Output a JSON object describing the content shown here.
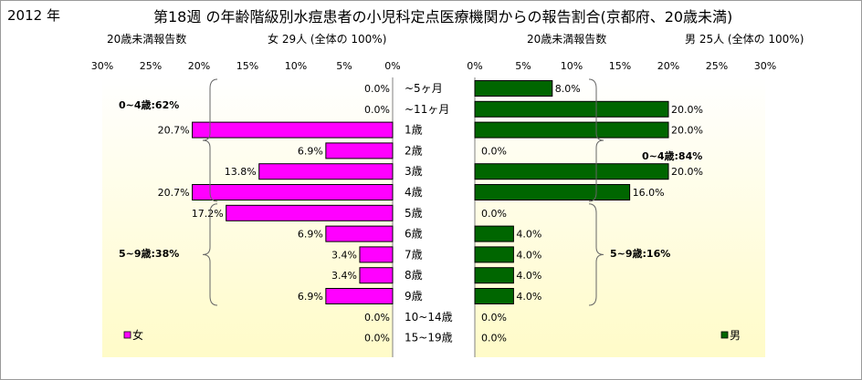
{
  "header": {
    "year": "2012 年",
    "title": "第18週 の年齢階級別水痘患者の小児科定点医療機関からの報告割合(京都府、20歳未満)"
  },
  "colors": {
    "female": "#ff00ff",
    "male": "#006600",
    "plot_top": "#ffffff",
    "plot_bottom": "#fffbc8"
  },
  "chart_data": [
    {
      "type": "bar",
      "orientation": "horizontal",
      "side": "left",
      "subtitle_left": "20歳未満報告数",
      "subtitle_right": "女 29人 (全体の 100%)",
      "legend": "女",
      "legend_position": "bottom-left",
      "xlim": [
        0,
        30
      ],
      "xticks": [
        "30%",
        "25%",
        "20%",
        "15%",
        "10%",
        "5%",
        "0%"
      ],
      "categories": [
        "~5ヶ月",
        "~11ヶ月",
        "1歳",
        "2歳",
        "3歳",
        "4歳",
        "5歳",
        "6歳",
        "7歳",
        "8歳",
        "9歳",
        "10~14歳",
        "15~19歳"
      ],
      "values": [
        0.0,
        0.0,
        20.7,
        6.9,
        13.8,
        20.7,
        17.2,
        6.9,
        3.4,
        3.4,
        6.9,
        0.0,
        0.0
      ],
      "data_labels": [
        "0.0%",
        "0.0%",
        "20.7%",
        "6.9%",
        "13.8%",
        "20.7%",
        "17.2%",
        "6.9%",
        "3.4%",
        "3.4%",
        "6.9%",
        "0.0%",
        "0.0%"
      ],
      "annotations": [
        {
          "text": "0~4歳:62%",
          "from": 0,
          "to": 5
        },
        {
          "text": "5~9歳:38%",
          "from": 6,
          "to": 10
        }
      ]
    },
    {
      "type": "bar",
      "orientation": "horizontal",
      "side": "right",
      "subtitle_left": "20歳未満報告数",
      "subtitle_right": "男 25人 (全体の 100%)",
      "legend": "男",
      "legend_position": "bottom-right",
      "xlim": [
        0,
        30
      ],
      "xticks": [
        "0%",
        "5%",
        "10%",
        "15%",
        "20%",
        "25%",
        "30%"
      ],
      "values": [
        8.0,
        20.0,
        20.0,
        0.0,
        20.0,
        16.0,
        0.0,
        4.0,
        4.0,
        4.0,
        4.0,
        0.0,
        0.0
      ],
      "data_labels": [
        "8.0%",
        "20.0%",
        "20.0%",
        "0.0%",
        "20.0%",
        "16.0%",
        "0.0%",
        "4.0%",
        "4.0%",
        "4.0%",
        "4.0%",
        "0.0%",
        "0.0%"
      ],
      "annotations": [
        {
          "text": "0~4歳:84%",
          "from": 0,
          "to": 5
        },
        {
          "text": "5~9歳:16%",
          "from": 6,
          "to": 10
        }
      ]
    }
  ]
}
